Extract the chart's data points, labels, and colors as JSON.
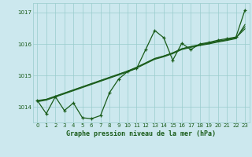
{
  "title": "Graphe pression niveau de la mer (hPa)",
  "bg_color": "#cce8ee",
  "grid_color": "#99cccc",
  "line_color": "#1a5c1a",
  "ylim": [
    1013.5,
    1017.3
  ],
  "xlim": [
    -0.5,
    23.5
  ],
  "yticks": [
    1014,
    1015,
    1016,
    1017
  ],
  "xticks": [
    0,
    1,
    2,
    3,
    4,
    5,
    6,
    7,
    8,
    9,
    10,
    11,
    12,
    13,
    14,
    15,
    16,
    17,
    18,
    19,
    20,
    21,
    22,
    23
  ],
  "main_y": [
    1014.2,
    1013.78,
    1014.32,
    1013.88,
    1014.12,
    1013.65,
    1013.62,
    1013.72,
    1014.45,
    1014.88,
    1015.12,
    1015.22,
    1015.82,
    1016.43,
    1016.2,
    1015.48,
    1016.02,
    1015.82,
    1016.0,
    1016.05,
    1016.12,
    1016.17,
    1016.22,
    1017.08
  ],
  "trend1_y": [
    1014.2,
    1014.24,
    1014.34,
    1014.44,
    1014.54,
    1014.64,
    1014.74,
    1014.84,
    1014.94,
    1015.04,
    1015.14,
    1015.26,
    1015.4,
    1015.54,
    1015.62,
    1015.72,
    1015.85,
    1015.92,
    1015.98,
    1016.03,
    1016.09,
    1016.14,
    1016.2,
    1016.48
  ],
  "trend2_y": [
    1014.18,
    1014.23,
    1014.33,
    1014.43,
    1014.53,
    1014.63,
    1014.73,
    1014.83,
    1014.93,
    1015.03,
    1015.13,
    1015.25,
    1015.39,
    1015.53,
    1015.61,
    1015.71,
    1015.84,
    1015.91,
    1015.97,
    1016.02,
    1016.08,
    1016.13,
    1016.19,
    1016.55
  ],
  "trend3_y": [
    1014.16,
    1014.21,
    1014.31,
    1014.41,
    1014.51,
    1014.61,
    1014.71,
    1014.81,
    1014.91,
    1015.01,
    1015.11,
    1015.23,
    1015.37,
    1015.51,
    1015.59,
    1015.69,
    1015.82,
    1015.89,
    1015.95,
    1016.0,
    1016.06,
    1016.11,
    1016.17,
    1016.62
  ]
}
